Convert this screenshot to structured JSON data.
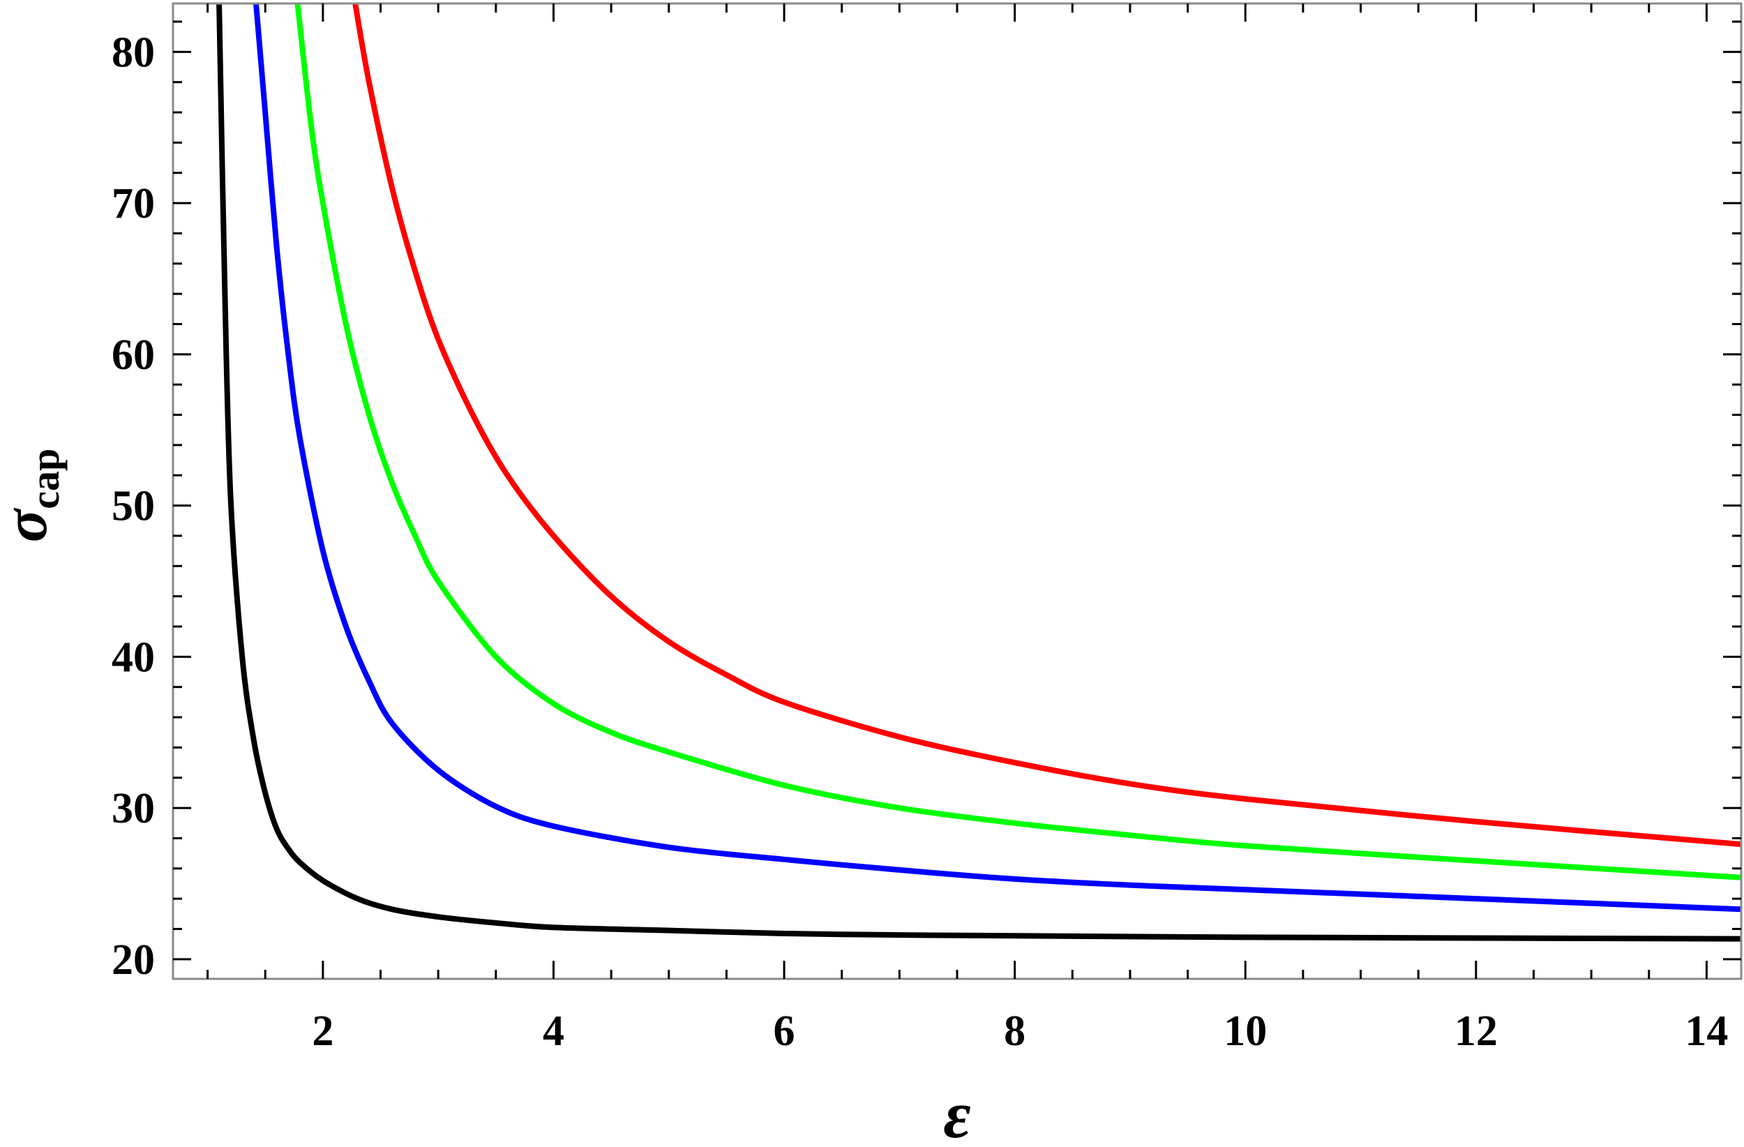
{
  "chart_data": {
    "type": "line",
    "title": "",
    "xlabel": "ε",
    "ylabel": "σ",
    "ylabel_subscript": "cap",
    "xlim": [
      0.7,
      14.3
    ],
    "ylim": [
      18.7,
      83.2
    ],
    "x_ticks": [
      2,
      4,
      6,
      8,
      10,
      12,
      14
    ],
    "x_tick_labels": [
      "2",
      "4",
      "6",
      "8",
      "10",
      "12",
      "14"
    ],
    "y_ticks": [
      20,
      30,
      40,
      50,
      60,
      70,
      80
    ],
    "y_tick_labels": [
      "20",
      "30",
      "40",
      "50",
      "60",
      "70",
      "80"
    ],
    "grid": false,
    "legend": "none",
    "series": [
      {
        "color": "#000000",
        "x": [
          1.1,
          1.15,
          1.2,
          1.3,
          1.4,
          1.5,
          1.6,
          1.7,
          1.8,
          2.0,
          2.3,
          2.6,
          3.0,
          3.5,
          4.0,
          5.0,
          6.0,
          7.0,
          8.0,
          10.0,
          12.0,
          14.3
        ],
        "y": [
          83.2,
          64.0,
          50.5,
          40.0,
          34.5,
          31.0,
          28.6,
          27.3,
          26.4,
          25.2,
          24.0,
          23.3,
          22.8,
          22.4,
          22.1,
          21.9,
          21.7,
          21.6,
          21.55,
          21.45,
          21.4,
          21.35
        ]
      },
      {
        "color": "#0000ff",
        "x": [
          1.42,
          1.5,
          1.6,
          1.7,
          1.8,
          2.0,
          2.2,
          2.4,
          2.6,
          3.0,
          3.5,
          4.0,
          5.0,
          6.0,
          7.0,
          8.0,
          9.0,
          10.0,
          12.0,
          14.3
        ],
        "y": [
          83.2,
          76.0,
          67.0,
          60.0,
          54.5,
          47.0,
          42.0,
          38.4,
          35.6,
          32.5,
          30.1,
          28.8,
          27.4,
          26.6,
          25.9,
          25.3,
          24.9,
          24.6,
          24.0,
          23.3
        ]
      },
      {
        "color": "#00ff00",
        "x": [
          1.78,
          1.9,
          2.0,
          2.2,
          2.4,
          2.6,
          2.8,
          3.0,
          3.5,
          4.0,
          4.5,
          5.0,
          6.0,
          7.0,
          8.0,
          9.0,
          10.0,
          12.0,
          14.3
        ],
        "y": [
          83.2,
          75.0,
          70.0,
          62.0,
          56.0,
          51.5,
          48.0,
          45.0,
          40.0,
          36.9,
          35.0,
          33.7,
          31.5,
          30.0,
          29.0,
          28.2,
          27.5,
          26.5,
          25.4
        ]
      },
      {
        "color": "#ff0000",
        "x": [
          2.28,
          2.4,
          2.6,
          2.8,
          3.0,
          3.3,
          3.6,
          4.0,
          4.5,
          5.0,
          5.5,
          6.0,
          7.0,
          8.0,
          9.0,
          10.0,
          12.0,
          14.3
        ],
        "y": [
          83.2,
          78.0,
          71.0,
          65.5,
          61.0,
          56.0,
          52.0,
          48.0,
          44.0,
          41.0,
          38.8,
          37.0,
          34.7,
          33.0,
          31.6,
          30.6,
          29.1,
          27.6
        ]
      }
    ]
  }
}
